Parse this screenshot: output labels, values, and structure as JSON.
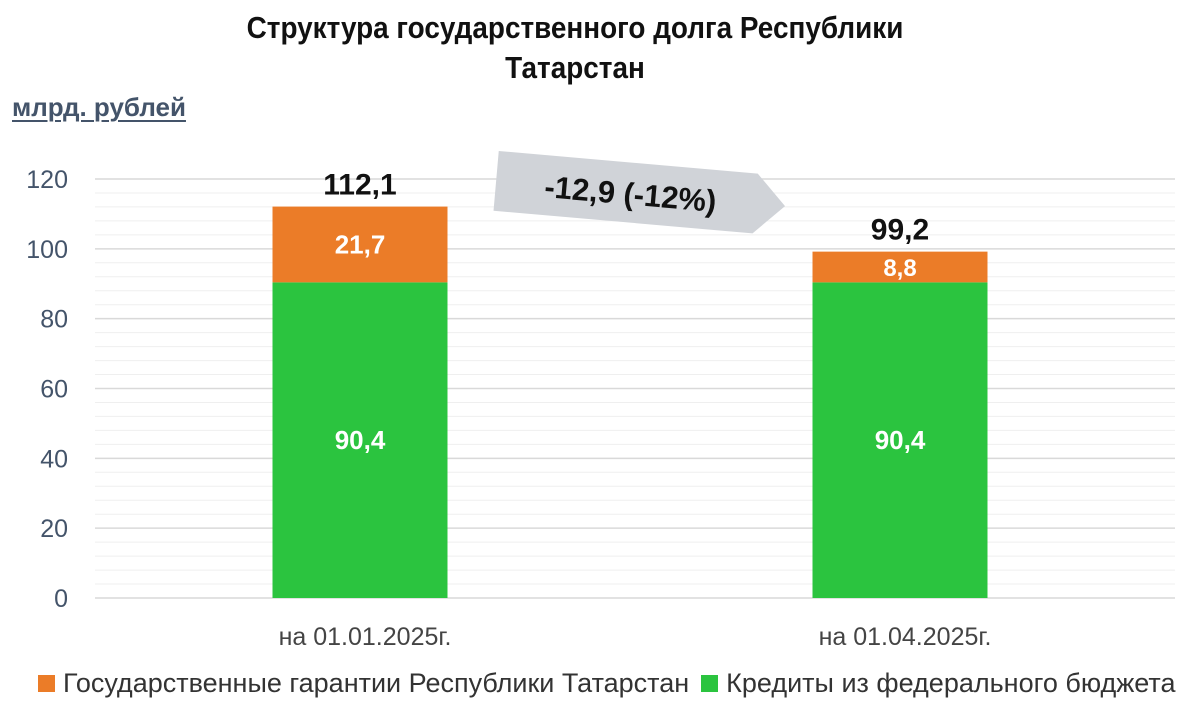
{
  "chart_data": {
    "type": "bar",
    "stacked": true,
    "title": "Структура государственного долга Республики Татарстан",
    "title_lines": [
      "Структура государственного долга Республики",
      "Татарстан"
    ],
    "ylabel": "млрд. рублей",
    "ylim": [
      0,
      120
    ],
    "yticks": [
      "0",
      "20",
      "40",
      "60",
      "80",
      "100",
      "120"
    ],
    "grid": true,
    "categories": [
      "на 01.01.2025г.",
      "на 01.04.2025г."
    ],
    "series": [
      {
        "name": "Кредиты из федерального бюджета",
        "values": [
          90.4,
          90.4
        ],
        "labels": [
          "90,4",
          "90,4"
        ],
        "color": "#2bc43f"
      },
      {
        "name": "Государственные гарантии Республики Татарстан",
        "values": [
          21.7,
          8.8
        ],
        "labels": [
          "21,7",
          "8,8"
        ],
        "color": "#eb7c28"
      }
    ],
    "totals": [
      "112,1",
      "99,2"
    ],
    "annotation": "-12,9 (-12%)",
    "legend": {
      "placement": "bottom",
      "entries": [
        "Государственные гарантии Республики Татарстан",
        "Кредиты из федерального бюджета"
      ]
    }
  }
}
